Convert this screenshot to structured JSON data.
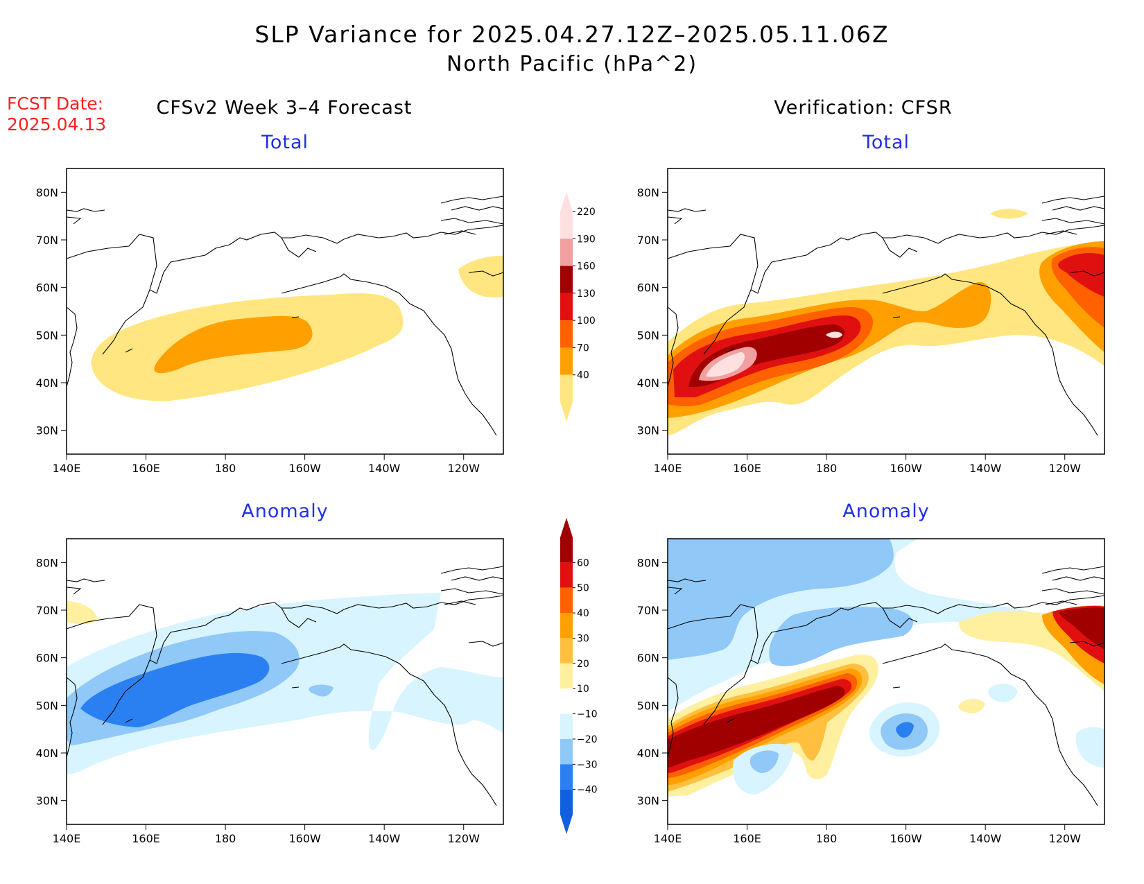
{
  "title": {
    "line1": "SLP Variance for 2025.04.27.12Z–2025.05.11.06Z",
    "line2": "North Pacific (hPa^2)"
  },
  "fcst": {
    "line1": "FCST Date:",
    "line2": "2025.04.13"
  },
  "columns": {
    "left": "CFSv2 Week 3–4 Forecast",
    "right": "Verification: CFSR"
  },
  "panels": [
    {
      "id": "fcst-total",
      "label": "Total"
    },
    {
      "id": "verif-total",
      "label": "Total"
    },
    {
      "id": "fcst-anom",
      "label": "Anomaly"
    },
    {
      "id": "verif-anom",
      "label": "Anomaly"
    }
  ],
  "axes": {
    "lat_ticks": [
      "80N",
      "70N",
      "60N",
      "50N",
      "40N",
      "30N"
    ],
    "lon_ticks": [
      "140E",
      "160E",
      "180",
      "160W",
      "140W",
      "120W"
    ],
    "lon_range": [
      140,
      250
    ],
    "lat_range": [
      25,
      85
    ]
  },
  "colorbars": {
    "total": {
      "labels": [
        "40",
        "70",
        "100",
        "130",
        "160",
        "190",
        "220"
      ],
      "colors": [
        "#ffe680",
        "#ffa000",
        "#ff6000",
        "#e01010",
        "#a00000",
        "#f0a0a0",
        "#ffe0e0"
      ]
    },
    "anomaly": {
      "labels": [
        "−40",
        "−30",
        "−20",
        "−10",
        "10",
        "20",
        "30",
        "40",
        "50",
        "60"
      ],
      "colors": [
        "#1060e0",
        "#2a80f0",
        "#90c8f8",
        "#d8f4ff",
        "#ffffff",
        "#fff0a0",
        "#ffc040",
        "#ffa000",
        "#ff6000",
        "#e01010",
        "#a00000"
      ]
    }
  },
  "colors": {
    "title": "#000000",
    "fcst_date": "#ff2020",
    "panel_label": "#2030e0"
  }
}
